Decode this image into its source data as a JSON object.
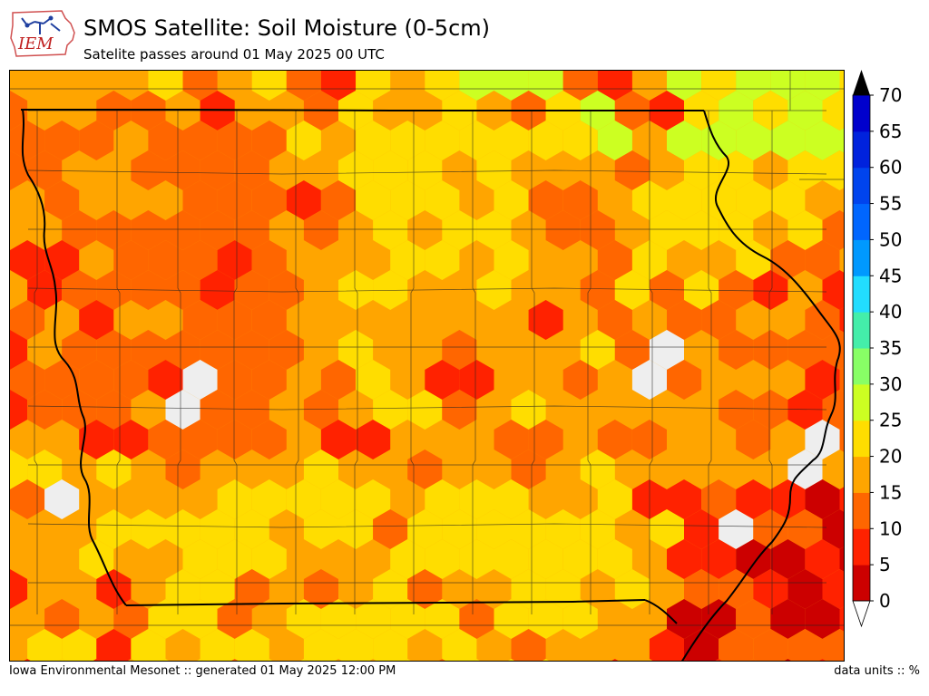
{
  "header": {
    "logo_text": "IEM",
    "title": "SMOS Satellite: Soil Moisture (0-5cm)",
    "subtitle": "Satelite passes around 01 May 2025 00 UTC"
  },
  "footer": {
    "left": "Iowa Environmental Mesonet :: generated 01 May 2025 12:00 PM",
    "right": "data units :: %"
  },
  "colorbar": {
    "ticks": [
      "0",
      "5",
      "10",
      "15",
      "20",
      "25",
      "30",
      "35",
      "40",
      "45",
      "50",
      "55",
      "60",
      "65",
      "70"
    ],
    "colors": [
      "#cc0000",
      "#ff2200",
      "#ff6600",
      "#ffa500",
      "#ffdd00",
      "#ccff22",
      "#88ff66",
      "#44eeaa",
      "#22ddff",
      "#0099ff",
      "#0066ff",
      "#0044ee",
      "#0022dd",
      "#0000cc"
    ],
    "under_color": "#ffffff",
    "over_color": "#000000"
  },
  "map": {
    "region": "Iowa",
    "nodata_color": "#eeeeee",
    "base_color": "#ffa500"
  }
}
